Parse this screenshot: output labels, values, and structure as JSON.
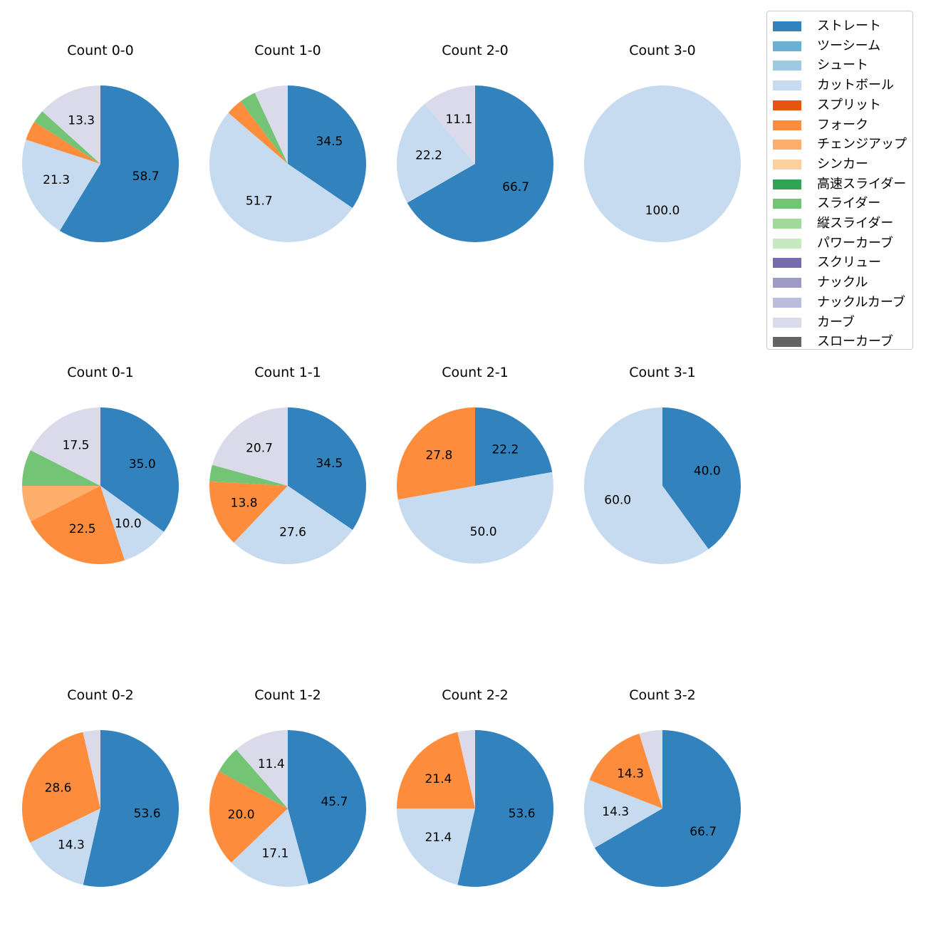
{
  "legend": {
    "items": [
      {
        "label": "ストレート",
        "color": "#3182bd"
      },
      {
        "label": "ツーシーム",
        "color": "#6baed6"
      },
      {
        "label": "シュート",
        "color": "#9ecae1"
      },
      {
        "label": "カットボール",
        "color": "#c6dbef"
      },
      {
        "label": "スプリット",
        "color": "#e6550d"
      },
      {
        "label": "フォーク",
        "color": "#fd8d3c"
      },
      {
        "label": "チェンジアップ",
        "color": "#fdae6b"
      },
      {
        "label": "シンカー",
        "color": "#fdd0a2"
      },
      {
        "label": "高速スライダー",
        "color": "#31a354"
      },
      {
        "label": "スライダー",
        "color": "#74c476"
      },
      {
        "label": "縦スライダー",
        "color": "#a1d99b"
      },
      {
        "label": "パワーカーブ",
        "color": "#c7e9c0"
      },
      {
        "label": "スクリュー",
        "color": "#756bb1"
      },
      {
        "label": "ナックル",
        "color": "#9e9ac8"
      },
      {
        "label": "ナックルカーブ",
        "color": "#bcbddc"
      },
      {
        "label": "カーブ",
        "color": "#dadaeb"
      },
      {
        "label": "スローカーブ",
        "color": "#636363"
      }
    ]
  },
  "chart_data": [
    {
      "type": "pie",
      "title": "Count 0-0",
      "slices": [
        {
          "category": "ストレート",
          "value": 58.7,
          "label": "58.7"
        },
        {
          "category": "カットボール",
          "value": 21.3,
          "label": "21.3"
        },
        {
          "category": "フォーク",
          "value": 4.0,
          "label": ""
        },
        {
          "category": "スライダー",
          "value": 2.7,
          "label": ""
        },
        {
          "category": "カーブ",
          "value": 13.3,
          "label": "13.3"
        }
      ]
    },
    {
      "type": "pie",
      "title": "Count 1-0",
      "slices": [
        {
          "category": "ストレート",
          "value": 34.5,
          "label": "34.5"
        },
        {
          "category": "カットボール",
          "value": 51.7,
          "label": "51.7"
        },
        {
          "category": "フォーク",
          "value": 3.4,
          "label": ""
        },
        {
          "category": "スライダー",
          "value": 3.4,
          "label": ""
        },
        {
          "category": "カーブ",
          "value": 6.9,
          "label": ""
        }
      ]
    },
    {
      "type": "pie",
      "title": "Count 2-0",
      "slices": [
        {
          "category": "ストレート",
          "value": 66.7,
          "label": "66.7"
        },
        {
          "category": "カットボール",
          "value": 22.2,
          "label": "22.2"
        },
        {
          "category": "カーブ",
          "value": 11.1,
          "label": "11.1"
        }
      ]
    },
    {
      "type": "pie",
      "title": "Count 3-0",
      "slices": [
        {
          "category": "カットボール",
          "value": 100.0,
          "label": "100.0"
        }
      ]
    },
    {
      "type": "pie",
      "title": "Count 0-1",
      "slices": [
        {
          "category": "ストレート",
          "value": 35.0,
          "label": "35.0"
        },
        {
          "category": "カットボール",
          "value": 10.0,
          "label": "10.0"
        },
        {
          "category": "フォーク",
          "value": 22.5,
          "label": "22.5"
        },
        {
          "category": "チェンジアップ",
          "value": 7.5,
          "label": ""
        },
        {
          "category": "スライダー",
          "value": 7.5,
          "label": ""
        },
        {
          "category": "カーブ",
          "value": 17.5,
          "label": "17.5"
        }
      ]
    },
    {
      "type": "pie",
      "title": "Count 1-1",
      "slices": [
        {
          "category": "ストレート",
          "value": 34.5,
          "label": "34.5"
        },
        {
          "category": "カットボール",
          "value": 27.6,
          "label": "27.6"
        },
        {
          "category": "フォーク",
          "value": 13.8,
          "label": "13.8"
        },
        {
          "category": "スライダー",
          "value": 3.4,
          "label": ""
        },
        {
          "category": "カーブ",
          "value": 20.7,
          "label": "20.7"
        }
      ]
    },
    {
      "type": "pie",
      "title": "Count 2-1",
      "slices": [
        {
          "category": "ストレート",
          "value": 22.2,
          "label": "22.2"
        },
        {
          "category": "カットボール",
          "value": 50.0,
          "label": "50.0"
        },
        {
          "category": "フォーク",
          "value": 27.8,
          "label": "27.8"
        }
      ]
    },
    {
      "type": "pie",
      "title": "Count 3-1",
      "slices": [
        {
          "category": "ストレート",
          "value": 40.0,
          "label": "40.0"
        },
        {
          "category": "カットボール",
          "value": 60.0,
          "label": "60.0"
        }
      ]
    },
    {
      "type": "pie",
      "title": "Count 0-2",
      "slices": [
        {
          "category": "ストレート",
          "value": 53.6,
          "label": "53.6"
        },
        {
          "category": "カットボール",
          "value": 14.3,
          "label": "14.3"
        },
        {
          "category": "フォーク",
          "value": 28.6,
          "label": "28.6"
        },
        {
          "category": "カーブ",
          "value": 3.6,
          "label": ""
        }
      ]
    },
    {
      "type": "pie",
      "title": "Count 1-2",
      "slices": [
        {
          "category": "ストレート",
          "value": 45.7,
          "label": "45.7"
        },
        {
          "category": "カットボール",
          "value": 17.1,
          "label": "17.1"
        },
        {
          "category": "フォーク",
          "value": 20.0,
          "label": "20.0"
        },
        {
          "category": "スライダー",
          "value": 5.7,
          "label": ""
        },
        {
          "category": "カーブ",
          "value": 11.4,
          "label": "11.4"
        }
      ]
    },
    {
      "type": "pie",
      "title": "Count 2-2",
      "slices": [
        {
          "category": "ストレート",
          "value": 53.6,
          "label": "53.6"
        },
        {
          "category": "カットボール",
          "value": 21.4,
          "label": "21.4"
        },
        {
          "category": "フォーク",
          "value": 21.4,
          "label": "21.4"
        },
        {
          "category": "カーブ",
          "value": 3.6,
          "label": ""
        }
      ]
    },
    {
      "type": "pie",
      "title": "Count 3-2",
      "slices": [
        {
          "category": "ストレート",
          "value": 66.7,
          "label": "66.7"
        },
        {
          "category": "カットボール",
          "value": 14.3,
          "label": "14.3"
        },
        {
          "category": "フォーク",
          "value": 14.3,
          "label": "14.3"
        },
        {
          "category": "カーブ",
          "value": 4.8,
          "label": ""
        }
      ]
    }
  ]
}
